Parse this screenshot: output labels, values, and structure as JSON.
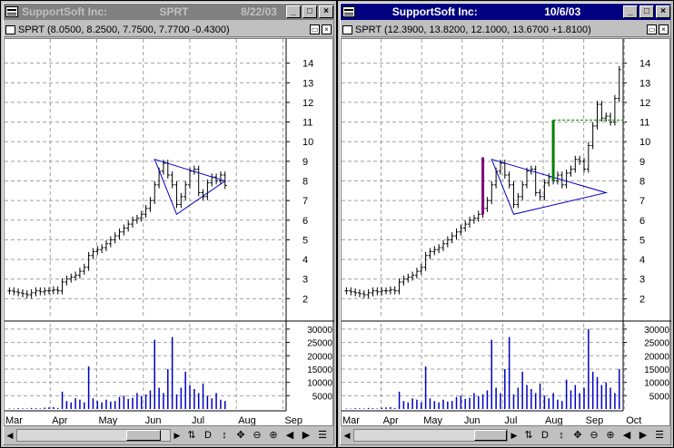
{
  "windows": [
    {
      "title_name": "SupportSoft Inc:",
      "title_symbol": "SPRT",
      "title_date": "8/22/03",
      "quote": "SPRT (8.0500, 8.2500, 7.7500, 7.7700 -0.4300)",
      "active": false
    },
    {
      "title_name": "SupportSoft Inc:",
      "title_symbol": "",
      "title_date": "10/6/03",
      "quote": "SPRT (12.3900, 13.8200, 12.1000, 13.6700 +1.8100)",
      "active": true
    }
  ],
  "buttons": {
    "minimize": "_",
    "maximize": "□",
    "close": "×"
  },
  "toolbar": {
    "scroll_left": "◀",
    "scroll_right": "▶",
    "tool_cycle": "⇅",
    "tool_period": "D",
    "tool_vscale": "↕",
    "tool_move": "✥",
    "tool_zoom_out": "⊖",
    "tool_zoom_in": "⊕",
    "tool_prev": "◀",
    "tool_next": "▶",
    "tool_menu": "☰"
  },
  "chart_data": [
    {
      "type": "candlestick",
      "title": "",
      "ylim": [
        1,
        15
      ],
      "price_ticks": [
        2,
        3,
        4,
        5,
        6,
        7,
        8,
        9,
        10,
        11,
        12,
        13,
        14
      ],
      "volume_ticks": [
        5000,
        10000,
        15000,
        20000,
        25000,
        30000
      ],
      "volume_tick_labels": [
        "5000",
        "10000",
        "15000",
        "20000",
        "25000",
        "30000"
      ],
      "x_labels": [
        "Mar",
        "Apr",
        "May",
        "Jun",
        "Jul",
        "Aug",
        "Sep"
      ],
      "close_path": [
        2.4,
        2.35,
        2.3,
        2.25,
        2.2,
        2.3,
        2.4,
        2.35,
        2.4,
        2.4,
        2.45,
        2.4,
        2.85,
        3.0,
        3.1,
        3.2,
        3.4,
        3.6,
        4.2,
        4.4,
        4.5,
        4.6,
        4.8,
        5.0,
        5.2,
        5.4,
        5.6,
        5.8,
        6.0,
        6.1,
        6.3,
        6.6,
        7.0,
        7.8,
        8.5,
        8.9,
        8.3,
        7.8,
        6.8,
        7.2,
        7.8,
        8.5,
        8.6,
        7.4,
        7.2,
        7.9,
        8.2,
        8.0,
        8.3,
        7.77
      ],
      "volumes": [
        200,
        150,
        300,
        250,
        200,
        400,
        300,
        200,
        500,
        600,
        700,
        400,
        6500,
        3000,
        2500,
        4000,
        3500,
        2500,
        16000,
        4000,
        3000,
        2500,
        3500,
        2800,
        3000,
        4500,
        5000,
        3800,
        4200,
        6000,
        4800,
        5500,
        7000,
        26000,
        8000,
        6000,
        15000,
        27000,
        5500,
        8000,
        14000,
        9000,
        7500,
        6000,
        9500,
        5000,
        4000,
        6000,
        3500,
        3000
      ],
      "annotations": [
        {
          "type": "triangle",
          "points": [
            [
              33,
              9.1
            ],
            [
              49,
              8.0
            ],
            [
              38,
              6.3
            ]
          ],
          "color": "#0000c0"
        }
      ]
    },
    {
      "type": "candlestick",
      "title": "",
      "ylim": [
        1,
        15
      ],
      "price_ticks": [
        2,
        3,
        4,
        5,
        6,
        7,
        8,
        9,
        10,
        11,
        12,
        13,
        14
      ],
      "volume_ticks": [
        5000,
        10000,
        15000,
        20000,
        25000,
        30000
      ],
      "volume_tick_labels": [
        "5000",
        "10000",
        "15000",
        "20000",
        "25000",
        "30000"
      ],
      "x_labels": [
        "Mar",
        "Apr",
        "May",
        "Jun",
        "Jul",
        "Aug",
        "Sep",
        "Oct"
      ],
      "close_path": [
        2.4,
        2.35,
        2.3,
        2.25,
        2.2,
        2.3,
        2.4,
        2.35,
        2.4,
        2.4,
        2.45,
        2.4,
        2.85,
        3.0,
        3.1,
        3.2,
        3.4,
        3.6,
        4.2,
        4.4,
        4.5,
        4.6,
        4.8,
        5.0,
        5.2,
        5.4,
        5.6,
        5.8,
        6.0,
        6.1,
        6.3,
        6.6,
        7.0,
        7.8,
        8.5,
        8.9,
        8.3,
        7.8,
        6.8,
        7.2,
        7.8,
        8.5,
        8.6,
        7.4,
        7.2,
        7.9,
        8.2,
        8.0,
        8.3,
        7.8,
        8.4,
        8.6,
        9.1,
        9.0,
        8.6,
        9.8,
        10.8,
        11.9,
        11.2,
        11.3,
        11.0,
        12.2,
        13.67
      ],
      "volumes": [
        200,
        150,
        300,
        250,
        200,
        400,
        300,
        200,
        500,
        600,
        700,
        400,
        6500,
        3000,
        2500,
        4000,
        3500,
        2500,
        16000,
        4000,
        3000,
        2500,
        3500,
        2800,
        3000,
        4500,
        5000,
        3800,
        4200,
        6000,
        4800,
        5500,
        7000,
        26000,
        8000,
        6000,
        15000,
        27000,
        5500,
        8000,
        14000,
        9000,
        7500,
        6000,
        9500,
        5000,
        4000,
        6000,
        3500,
        3000,
        11000,
        7000,
        9000,
        6000,
        8000,
        30000,
        14000,
        12000,
        9000,
        10000,
        8000,
        6000,
        15000
      ],
      "annotations": [
        {
          "type": "triangle",
          "points": [
            [
              33,
              9.1
            ],
            [
              59,
              7.4
            ],
            [
              38,
              6.3
            ]
          ],
          "color": "#0000c0"
        },
        {
          "type": "vbar",
          "x": 31,
          "y1": 6.3,
          "y2": 9.2,
          "color": "#800080"
        },
        {
          "type": "vbar",
          "x": 47,
          "y1": 8.0,
          "y2": 11.1,
          "color": "#008000"
        },
        {
          "type": "hline",
          "x1": 47,
          "x2": 63,
          "y": 11.1,
          "color": "#008000"
        }
      ]
    }
  ]
}
